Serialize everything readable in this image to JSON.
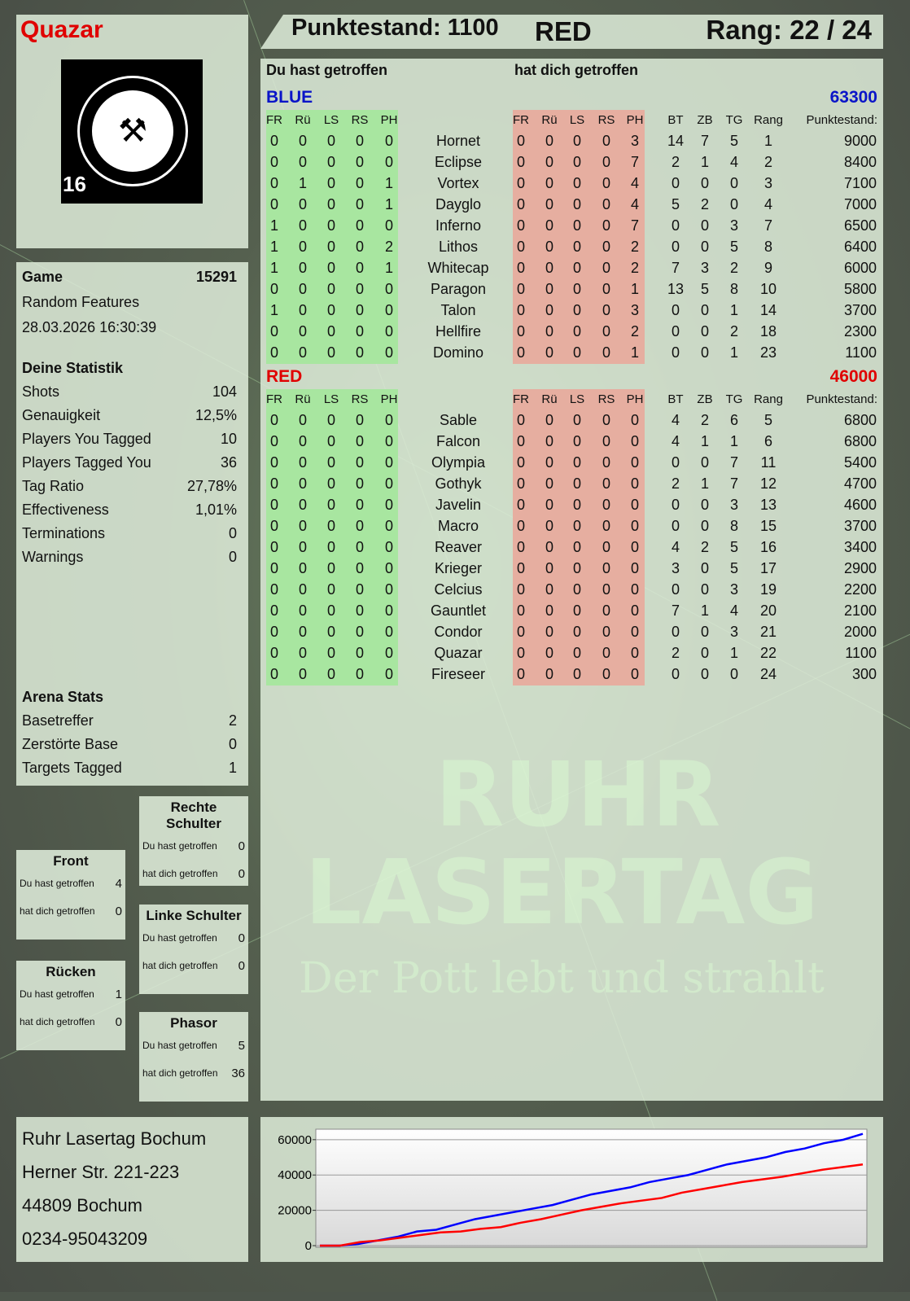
{
  "player": {
    "name": "Quazar",
    "score_label": "Punktestand: 1100",
    "team": "RED",
    "rank_label": "Rang: 22 / 24",
    "logo_text": "RUHR LASERTAG",
    "logo_badge": "16"
  },
  "game": {
    "label": "Game",
    "id": "15291",
    "mode": "Random Features",
    "datetime": "28.03.2026 16:30:39"
  },
  "statistik": {
    "title": "Deine Statistik",
    "items": [
      {
        "label": "Shots",
        "value": "104"
      },
      {
        "label": "Genauigkeit",
        "value": "12,5%"
      },
      {
        "label": "Players You Tagged",
        "value": "10"
      },
      {
        "label": "Players Tagged You",
        "value": "36"
      },
      {
        "label": "Tag Ratio",
        "value": "27,78%"
      },
      {
        "label": "Effectiveness",
        "value": "1,01%"
      },
      {
        "label": "Terminations",
        "value": "0"
      },
      {
        "label": "Warnings",
        "value": "0"
      }
    ]
  },
  "arena": {
    "title": "Arena Stats",
    "items": [
      {
        "label": "Basetreffer",
        "value": "2"
      },
      {
        "label": "Zerstörte Base",
        "value": "0"
      },
      {
        "label": "Targets Tagged",
        "value": "1"
      }
    ]
  },
  "zones": [
    {
      "title": "Rechte Schulter",
      "hit_label": "Du hast getroffen",
      "hit": "0",
      "got_label": "hat dich getroffen",
      "got": "0"
    },
    {
      "title": "Front",
      "hit_label": "Du hast getroffen",
      "hit": "4",
      "got_label": "hat dich getroffen",
      "got": "0"
    },
    {
      "title": "Linke Schulter",
      "hit_label": "Du hast getroffen",
      "hit": "0",
      "got_label": "hat dich getroffen",
      "got": "0"
    },
    {
      "title": "Rücken",
      "hit_label": "Du hast getroffen",
      "hit": "1",
      "got_label": "hat dich getroffen",
      "got": "0"
    },
    {
      "title": "Phasor",
      "hit_label": "Du hast getroffen",
      "hit": "5",
      "got_label": "hat dich getroffen",
      "got": "36"
    }
  ],
  "address": [
    "Ruhr Lasertag Bochum",
    "Herner Str. 221-223",
    "44809 Bochum",
    "0234-95043209"
  ],
  "table": {
    "hit_title": "Du hast getroffen",
    "got_title": "hat dich getroffen",
    "zone_headers": [
      "FR",
      "Rü",
      "LS",
      "RS",
      "PH"
    ],
    "stat_headers": [
      "BT",
      "ZB",
      "TG",
      "Rang"
    ],
    "score_header": "Punktestand:",
    "teams": [
      {
        "name": "BLUE",
        "total": "63300",
        "color": "#0a14c8",
        "players": [
          [
            "Hornet",
            [
              0,
              0,
              0,
              0,
              0
            ],
            [
              0,
              0,
              0,
              0,
              3
            ],
            [
              14,
              7,
              5,
              1
            ],
            9000
          ],
          [
            "Eclipse",
            [
              0,
              0,
              0,
              0,
              0
            ],
            [
              0,
              0,
              0,
              0,
              7
            ],
            [
              2,
              1,
              4,
              2
            ],
            8400
          ],
          [
            "Vortex",
            [
              0,
              1,
              0,
              0,
              1
            ],
            [
              0,
              0,
              0,
              0,
              4
            ],
            [
              0,
              0,
              0,
              3
            ],
            7100
          ],
          [
            "Dayglo",
            [
              0,
              0,
              0,
              0,
              1
            ],
            [
              0,
              0,
              0,
              0,
              4
            ],
            [
              5,
              2,
              0,
              4
            ],
            7000
          ],
          [
            "Inferno",
            [
              1,
              0,
              0,
              0,
              0
            ],
            [
              0,
              0,
              0,
              0,
              7
            ],
            [
              0,
              0,
              3,
              7
            ],
            6500
          ],
          [
            "Lithos",
            [
              1,
              0,
              0,
              0,
              2
            ],
            [
              0,
              0,
              0,
              0,
              2
            ],
            [
              0,
              0,
              5,
              8
            ],
            6400
          ],
          [
            "Whitecap",
            [
              1,
              0,
              0,
              0,
              1
            ],
            [
              0,
              0,
              0,
              0,
              2
            ],
            [
              7,
              3,
              2,
              9
            ],
            6000
          ],
          [
            "Paragon",
            [
              0,
              0,
              0,
              0,
              0
            ],
            [
              0,
              0,
              0,
              0,
              1
            ],
            [
              13,
              5,
              8,
              10
            ],
            5800
          ],
          [
            "Talon",
            [
              1,
              0,
              0,
              0,
              0
            ],
            [
              0,
              0,
              0,
              0,
              3
            ],
            [
              0,
              0,
              1,
              14
            ],
            3700
          ],
          [
            "Hellfire",
            [
              0,
              0,
              0,
              0,
              0
            ],
            [
              0,
              0,
              0,
              0,
              2
            ],
            [
              0,
              0,
              2,
              18
            ],
            2300
          ],
          [
            "Domino",
            [
              0,
              0,
              0,
              0,
              0
            ],
            [
              0,
              0,
              0,
              0,
              1
            ],
            [
              0,
              0,
              1,
              23
            ],
            1100
          ]
        ]
      },
      {
        "name": "RED",
        "total": "46000",
        "color": "#e00000",
        "players": [
          [
            "Sable",
            [
              0,
              0,
              0,
              0,
              0
            ],
            [
              0,
              0,
              0,
              0,
              0
            ],
            [
              4,
              2,
              6,
              5
            ],
            6800
          ],
          [
            "Falcon",
            [
              0,
              0,
              0,
              0,
              0
            ],
            [
              0,
              0,
              0,
              0,
              0
            ],
            [
              4,
              1,
              1,
              6
            ],
            6800
          ],
          [
            "Olympia",
            [
              0,
              0,
              0,
              0,
              0
            ],
            [
              0,
              0,
              0,
              0,
              0
            ],
            [
              0,
              0,
              7,
              11
            ],
            5400
          ],
          [
            "Gothyk",
            [
              0,
              0,
              0,
              0,
              0
            ],
            [
              0,
              0,
              0,
              0,
              0
            ],
            [
              2,
              1,
              7,
              12
            ],
            4700
          ],
          [
            "Javelin",
            [
              0,
              0,
              0,
              0,
              0
            ],
            [
              0,
              0,
              0,
              0,
              0
            ],
            [
              0,
              0,
              3,
              13
            ],
            4600
          ],
          [
            "Macro",
            [
              0,
              0,
              0,
              0,
              0
            ],
            [
              0,
              0,
              0,
              0,
              0
            ],
            [
              0,
              0,
              8,
              15
            ],
            3700
          ],
          [
            "Reaver",
            [
              0,
              0,
              0,
              0,
              0
            ],
            [
              0,
              0,
              0,
              0,
              0
            ],
            [
              4,
              2,
              5,
              16
            ],
            3400
          ],
          [
            "Krieger",
            [
              0,
              0,
              0,
              0,
              0
            ],
            [
              0,
              0,
              0,
              0,
              0
            ],
            [
              3,
              0,
              5,
              17
            ],
            2900
          ],
          [
            "Celcius",
            [
              0,
              0,
              0,
              0,
              0
            ],
            [
              0,
              0,
              0,
              0,
              0
            ],
            [
              0,
              0,
              3,
              19
            ],
            2200
          ],
          [
            "Gauntlet",
            [
              0,
              0,
              0,
              0,
              0
            ],
            [
              0,
              0,
              0,
              0,
              0
            ],
            [
              7,
              1,
              4,
              20
            ],
            2100
          ],
          [
            "Condor",
            [
              0,
              0,
              0,
              0,
              0
            ],
            [
              0,
              0,
              0,
              0,
              0
            ],
            [
              0,
              0,
              3,
              21
            ],
            2000
          ],
          [
            "Quazar",
            [
              0,
              0,
              0,
              0,
              0
            ],
            [
              0,
              0,
              0,
              0,
              0
            ],
            [
              2,
              0,
              1,
              22
            ],
            1100
          ],
          [
            "Fireseer",
            [
              0,
              0,
              0,
              0,
              0
            ],
            [
              0,
              0,
              0,
              0,
              0
            ],
            [
              0,
              0,
              0,
              24
            ],
            300
          ]
        ]
      }
    ]
  },
  "watermark": {
    "line1": "RUHR",
    "line2": "LASERTAG",
    "line3": "Der Pott lebt und strahlt"
  },
  "colors": {
    "hit_bg": "#a8e6a0",
    "got_bg": "#e6aea0",
    "name_red": "#e00000"
  },
  "chart_data": {
    "type": "line",
    "ylim": [
      0,
      65000
    ],
    "yticks": [
      0,
      20000,
      40000,
      60000
    ],
    "grid": true,
    "series": [
      {
        "color": "#0000ff",
        "values": [
          0,
          0,
          1000,
          3000,
          5000,
          8000,
          9000,
          12000,
          15000,
          17000,
          19000,
          21000,
          23000,
          26000,
          29000,
          31000,
          33000,
          36000,
          38000,
          40000,
          43000,
          46000,
          48000,
          50000,
          53000,
          55000,
          58000,
          60000,
          63300
        ]
      },
      {
        "color": "#ff0000",
        "values": [
          0,
          0,
          2000,
          3000,
          4500,
          6000,
          7500,
          8000,
          9500,
          10500,
          13000,
          15000,
          17500,
          20000,
          22000,
          24000,
          25500,
          27000,
          30000,
          32000,
          34000,
          36000,
          37500,
          39000,
          41000,
          43000,
          44500,
          46000
        ]
      }
    ]
  }
}
